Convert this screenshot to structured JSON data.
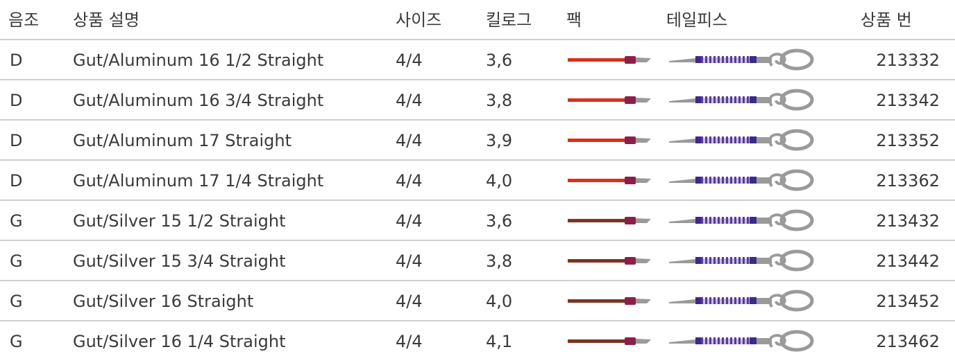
{
  "table": {
    "header": [
      "음조",
      "상품 설명",
      "사이즈",
      "킬로그",
      "팩",
      "테일피스",
      "상품 번"
    ],
    "rows": [
      [
        "D",
        "Gut/Aluminum 16 1/2 Straight",
        "4/4",
        "3,6",
        "213332"
      ],
      [
        "D",
        "Gut/Aluminum 16 3/4 Straight",
        "4/4",
        "3,8",
        "213342"
      ],
      [
        "D",
        "Gut/Aluminum 17 Straight",
        "4/4",
        "3,9",
        "213352"
      ],
      [
        "D",
        "Gut/Aluminum 17 1/4 Straight",
        "4/4",
        "4,0",
        "213362"
      ],
      [
        "G",
        "Gut/Silver 15 1/2 Straight",
        "4/4",
        "3,6",
        "213432"
      ],
      [
        "G",
        "Gut/Silver 15 3/4 Straight",
        "4/4",
        "3,8",
        "213442"
      ],
      [
        "G",
        "Gut/Silver 16 Straight",
        "4/4",
        "4,0",
        "213452"
      ],
      [
        "G",
        "Gut/Silver 16 1/4 Straight",
        "4/4",
        "4,1",
        "213462"
      ]
    ],
    "pack_colors": [
      "#d9301b",
      "#d9301b",
      "#d9301b",
      "#d9301b",
      "#7a3520",
      "#7a3520",
      "#7a3520",
      "#7a3520"
    ]
  }
}
